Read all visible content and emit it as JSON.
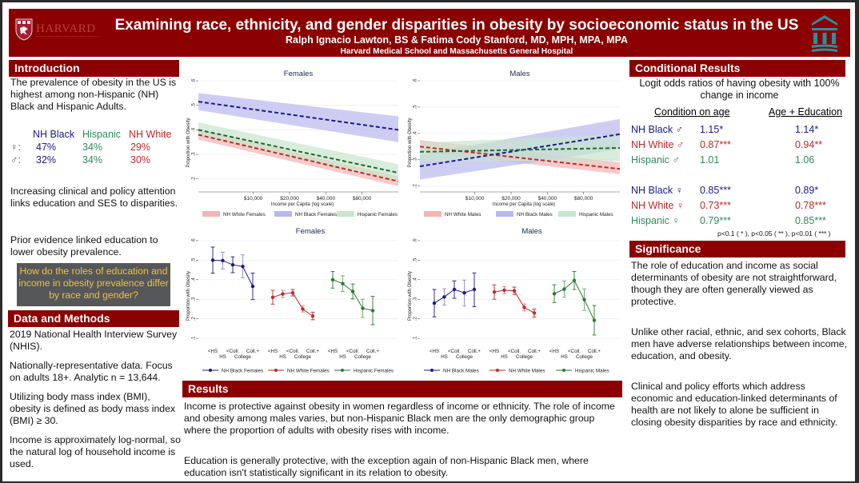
{
  "header": {
    "logo_left_text": "HARVARD",
    "title": "Examining race, ethnicity, and gender disparities in obesity by socioeconomic status in the US",
    "authors": "Ralph Ignacio Lawton, BS & Fatima Cody Stanford, MD, MPH, MPA, MPA",
    "affiliation": "Harvard Medical School and Massachusetts General Hospital"
  },
  "colors": {
    "brand": "#8b0000",
    "nh_black": "#1a1a8c",
    "hispanic": "#2e8b57",
    "nh_white": "#c0282a",
    "question_bg": "#555759",
    "question_text": "#f0c040"
  },
  "introduction": {
    "heading": "Introduction",
    "p1": "The prevalence of obesity in the US is highest among non-Hispanic (NH) Black and Hispanic Adults.",
    "prevalence": {
      "columns": [
        "NH Black",
        "Hispanic",
        "NH White"
      ],
      "rows": [
        {
          "symbol": "♀:",
          "values": [
            "47%",
            "34%",
            "29%"
          ]
        },
        {
          "symbol": "♂:",
          "values": [
            "32%",
            "34%",
            "30%"
          ]
        }
      ]
    },
    "p2": "Increasing clinical and policy attention links education and SES to disparities.",
    "p3": "Prior evidence linked education to lower obesity prevalence.",
    "question": "How do the roles of education and income in obesity prevalence differ by race and gender?"
  },
  "methods": {
    "heading": "Data and Methods",
    "p1": "2019 National Health Interview Survey (NHIS).",
    "p2": "Nationally-representative data. Focus on adults 18+. Analytic n = 13,644.",
    "p3": "Utilizing body mass index (BMI), obesity is defined as body mass index (BMI) ≥ 30.",
    "p4": "Income is approximately log-normal, so the natural log of household income is used."
  },
  "results": {
    "heading": "Results",
    "p1": "Income is protective against obesity in women regardless of income or ethnicity. The role of income and obesity among males varies, but non-Hispanic Black men are the only demographic group where the proportion of adults with obesity rises with income.",
    "p2": "Education is generally protective, with the exception again of non-Hispanic Black men, where education isn't statistically significant in its relation to obesity."
  },
  "conditional": {
    "heading": "Conditional Results",
    "subtitle": "Logit odds ratios of having obesity with 100% change in income",
    "col1": "Condition on age",
    "col2": "Age + Education",
    "rows": [
      {
        "label": "NH Black ♂",
        "v1": "1.15*",
        "v2": "1.14*",
        "group": "nh_black"
      },
      {
        "label": "NH White ♂",
        "v1": "0.87***",
        "v2": "0.94**",
        "group": "nh_white"
      },
      {
        "label": "Hispanic ♂",
        "v1": "1.01",
        "v2": "1.06",
        "group": "hispanic"
      },
      {
        "label": "NH Black ♀",
        "v1": "0.85***",
        "v2": "0.89*",
        "group": "nh_black"
      },
      {
        "label": "NH White ♀",
        "v1": "0.73***",
        "v2": "0.78***",
        "group": "nh_white"
      },
      {
        "label": "Hispanic ♀",
        "v1": "0.79***",
        "v2": "0.85***",
        "group": "hispanic"
      }
    ],
    "footnote": "p<0.1 ( * ), p<0.05 ( ** ), p<0.01 ( *** )"
  },
  "significance": {
    "heading": "Significance",
    "p1": "The role of education and income as social determinants of obesity are not straightforward, though they are often generally viewed as protective.",
    "p2": "Unlike other racial, ethnic, and sex cohorts, Black men have adverse relationships between income, education, and obesity.",
    "p3": "Clinical and policy efforts which address economic and education-linked determinants of health are not likely to alone be sufficient in closing obesity disparities by race and ethnicity."
  },
  "chart_data": [
    {
      "type": "line",
      "title": "Females",
      "xlabel": "Income per Capita (log scale)",
      "ylabel": "Proportion with Obesity",
      "xscale": "log",
      "xticks": [
        "$10,000",
        "$20,000",
        "$40,000",
        "$80,000"
      ],
      "xtick_values": [
        10000,
        20000,
        40000,
        80000
      ],
      "xlim": [
        3500,
        160000
      ],
      "yticks": [
        ".2",
        ".3",
        ".4",
        ".5",
        ".6"
      ],
      "ylim": [
        0.16,
        0.6
      ],
      "grid": true,
      "legend": "bottom",
      "series": [
        {
          "name": "NH White Females",
          "color": "#c0282a",
          "band": "#f4b4b4",
          "x": [
            3500,
            160000
          ],
          "y": [
            0.38,
            0.19
          ],
          "lo": [
            0.36,
            0.17
          ],
          "hi": [
            0.4,
            0.21
          ]
        },
        {
          "name": "NH Black Females",
          "color": "#1a1a8c",
          "band": "#b8b8f0",
          "x": [
            3500,
            160000
          ],
          "y": [
            0.515,
            0.4
          ],
          "lo": [
            0.48,
            0.35
          ],
          "hi": [
            0.55,
            0.455
          ]
        },
        {
          "name": "Hispanic Females",
          "color": "#1e6b2a",
          "band": "#c8e6cc",
          "x": [
            3500,
            160000
          ],
          "y": [
            0.4,
            0.225
          ],
          "lo": [
            0.375,
            0.19
          ],
          "hi": [
            0.43,
            0.26
          ]
        }
      ]
    },
    {
      "type": "line",
      "title": "Males",
      "xlabel": "Income per Capita (log scale)",
      "ylabel": "Proportion with Obesity",
      "xscale": "log",
      "xticks": [
        "$10,000",
        "$20,000",
        "$40,000",
        "$80,000"
      ],
      "xtick_values": [
        10000,
        20000,
        40000,
        80000
      ],
      "xlim": [
        3500,
        160000
      ],
      "yticks": [
        ".2",
        ".3",
        ".4",
        ".5",
        ".6"
      ],
      "ylim": [
        0.19,
        0.6
      ],
      "grid": true,
      "legend": "bottom",
      "series": [
        {
          "name": "NH White Males",
          "color": "#c0282a",
          "band": "#f4b4b4",
          "x": [
            3500,
            160000
          ],
          "y": [
            0.35,
            0.265
          ],
          "lo": [
            0.33,
            0.245
          ],
          "hi": [
            0.375,
            0.29
          ]
        },
        {
          "name": "NH Black Males",
          "color": "#1a1a8c",
          "band": "#b8b8f0",
          "x": [
            3500,
            160000
          ],
          "y": [
            0.275,
            0.397
          ],
          "lo": [
            0.225,
            0.34
          ],
          "hi": [
            0.32,
            0.455
          ]
        },
        {
          "name": "Hispanic Males",
          "color": "#1e6b2a",
          "band": "#c8e6cc",
          "x": [
            3500,
            160000
          ],
          "y": [
            0.33,
            0.345
          ],
          "lo": [
            0.295,
            0.295
          ],
          "hi": [
            0.365,
            0.395
          ]
        }
      ]
    },
    {
      "type": "line",
      "title": "Females",
      "ylabel": "Proportion with Obesity",
      "yticks": [
        ".1",
        ".2",
        ".3",
        ".4",
        ".5",
        ".6"
      ],
      "ylim": [
        0.08,
        0.62
      ],
      "categories": [
        "<HS",
        "HS",
        "<Coll.",
        "College",
        "Coll.+"
      ],
      "grid": true,
      "legend": "bottom",
      "series": [
        {
          "name": "NH Black Females",
          "color": "#1a1a8c",
          "values": [
            0.5,
            0.498,
            0.476,
            0.468,
            0.366
          ],
          "lo": [
            0.433,
            0.455,
            0.436,
            0.41,
            0.298
          ],
          "hi": [
            0.567,
            0.54,
            0.517,
            0.527,
            0.434
          ]
        },
        {
          "name": "NH White Females",
          "color": "#c0282a",
          "values": [
            0.31,
            0.327,
            0.333,
            0.25,
            0.214
          ],
          "lo": [
            0.275,
            0.309,
            0.317,
            0.235,
            0.195
          ],
          "hi": [
            0.346,
            0.346,
            0.35,
            0.267,
            0.234
          ]
        },
        {
          "name": "Hispanic Females",
          "color": "#2a7a30",
          "values": [
            0.4,
            0.38,
            0.34,
            0.254,
            0.242
          ],
          "lo": [
            0.357,
            0.34,
            0.302,
            0.207,
            0.17
          ],
          "hi": [
            0.442,
            0.42,
            0.378,
            0.3,
            0.315
          ]
        }
      ]
    },
    {
      "type": "line",
      "title": "Males",
      "ylabel": "Proportion with Obesity",
      "yticks": [
        ".1",
        ".2",
        ".3",
        ".4",
        ".5",
        ".6"
      ],
      "ylim": [
        0.08,
        0.62
      ],
      "categories": [
        "<HS",
        "HS",
        "<Coll.",
        "College",
        "Coll.+"
      ],
      "grid": true,
      "legend": "bottom",
      "series": [
        {
          "name": "NH Black Males",
          "color": "#1a1a8c",
          "values": [
            0.28,
            0.312,
            0.35,
            0.333,
            0.35
          ],
          "lo": [
            0.21,
            0.27,
            0.305,
            0.265,
            0.262
          ],
          "hi": [
            0.35,
            0.354,
            0.394,
            0.398,
            0.435
          ]
        },
        {
          "name": "NH White Males",
          "color": "#c0282a",
          "values": [
            0.337,
            0.346,
            0.343,
            0.258,
            0.23
          ],
          "lo": [
            0.3,
            0.328,
            0.325,
            0.24,
            0.208
          ],
          "hi": [
            0.374,
            0.365,
            0.362,
            0.276,
            0.25
          ]
        },
        {
          "name": "Hispanic Males",
          "color": "#2a7a30",
          "values": [
            0.328,
            0.352,
            0.396,
            0.298,
            0.192
          ],
          "lo": [
            0.283,
            0.31,
            0.35,
            0.243,
            0.117
          ],
          "hi": [
            0.374,
            0.394,
            0.442,
            0.353,
            0.268
          ]
        }
      ]
    }
  ]
}
